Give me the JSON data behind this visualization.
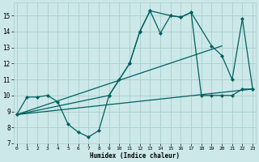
{
  "xlabel": "Humidex (Indice chaleur)",
  "bg_color": "#cce8e8",
  "grid_color": "#aacece",
  "line_color": "#006060",
  "series": [
    {
      "x": [
        0,
        1,
        2,
        3,
        4,
        5,
        6,
        7,
        8,
        9,
        10,
        11,
        12,
        13,
        14,
        15,
        16,
        17,
        18,
        19,
        20,
        21,
        22,
        23
      ],
      "y": [
        8.8,
        9.9,
        9.9,
        10.0,
        9.6,
        8.2,
        7.7,
        7.4,
        7.8,
        10.0,
        11.0,
        12.0,
        14.0,
        15.3,
        13.9,
        15.0,
        14.9,
        15.2,
        10.0,
        10.0,
        10.0,
        10.0,
        10.4,
        10.4
      ],
      "marker": "D",
      "markersize": 2.0,
      "linewidth": 0.9
    },
    {
      "x": [
        0,
        9,
        11,
        12,
        13,
        15,
        16,
        17,
        19,
        20,
        21,
        22,
        23
      ],
      "y": [
        8.8,
        10.0,
        12.0,
        14.0,
        15.3,
        15.0,
        14.9,
        15.2,
        13.1,
        12.5,
        11.0,
        14.8,
        10.4
      ],
      "marker": "D",
      "markersize": 2.0,
      "linewidth": 0.9
    },
    {
      "x": [
        0,
        20
      ],
      "y": [
        8.8,
        13.1
      ],
      "marker": null,
      "markersize": 0,
      "linewidth": 0.9
    },
    {
      "x": [
        0,
        23
      ],
      "y": [
        8.8,
        10.4
      ],
      "marker": null,
      "markersize": 0,
      "linewidth": 0.9
    }
  ],
  "xlim": [
    -0.3,
    23.3
  ],
  "ylim": [
    7,
    15.8
  ],
  "yticks": [
    7,
    8,
    9,
    10,
    11,
    12,
    13,
    14,
    15
  ],
  "xticks": [
    0,
    1,
    2,
    3,
    4,
    5,
    6,
    7,
    8,
    9,
    10,
    11,
    12,
    13,
    14,
    15,
    16,
    17,
    18,
    19,
    20,
    21,
    22,
    23
  ]
}
